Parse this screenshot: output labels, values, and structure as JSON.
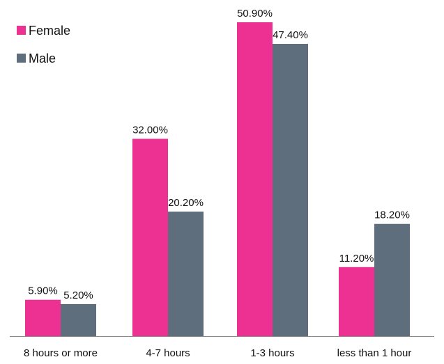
{
  "chart_data": {
    "type": "bar",
    "title": "",
    "xlabel": "",
    "ylabel": "",
    "categories": [
      "8 hours or more",
      "4-7 hours",
      "1-3 hours",
      "less than 1 hour"
    ],
    "series": [
      {
        "name": "Female",
        "color": "#ec3192",
        "values": [
          5.9,
          32.0,
          50.9,
          11.2
        ],
        "labels": [
          "5.90%",
          "32.00%",
          "50.90%",
          "11.20%"
        ]
      },
      {
        "name": "Male",
        "color": "#5f6e7c",
        "values": [
          5.2,
          20.2,
          47.4,
          18.2
        ],
        "labels": [
          "5.20%",
          "20.20%",
          "47.40%",
          "18.20%"
        ]
      }
    ],
    "ylim": [
      0,
      50.9
    ],
    "grid": false,
    "legend_position": "top-left",
    "y_axis_visible": false
  }
}
